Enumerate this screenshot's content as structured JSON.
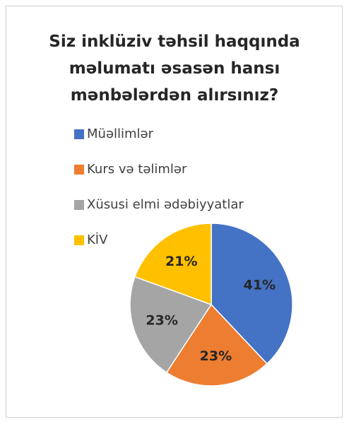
{
  "chart_data": {
    "type": "pie",
    "title": "Siz inklüziv təhsil haqqında məlumatı əsasən hansı mənbələrdən alırsınız?",
    "categories": [
      "Müəllimlər",
      "Kurs və təlimlər",
      "Xüsusi elmi ədəbiyyatlar",
      "KİV"
    ],
    "values": [
      41,
      23,
      23,
      21
    ],
    "value_labels": [
      "41%",
      "23%",
      "23%",
      "21%"
    ],
    "colors": [
      "#4472c4",
      "#ed7d31",
      "#a5a5a5",
      "#ffc000"
    ],
    "legend": "top-left"
  }
}
